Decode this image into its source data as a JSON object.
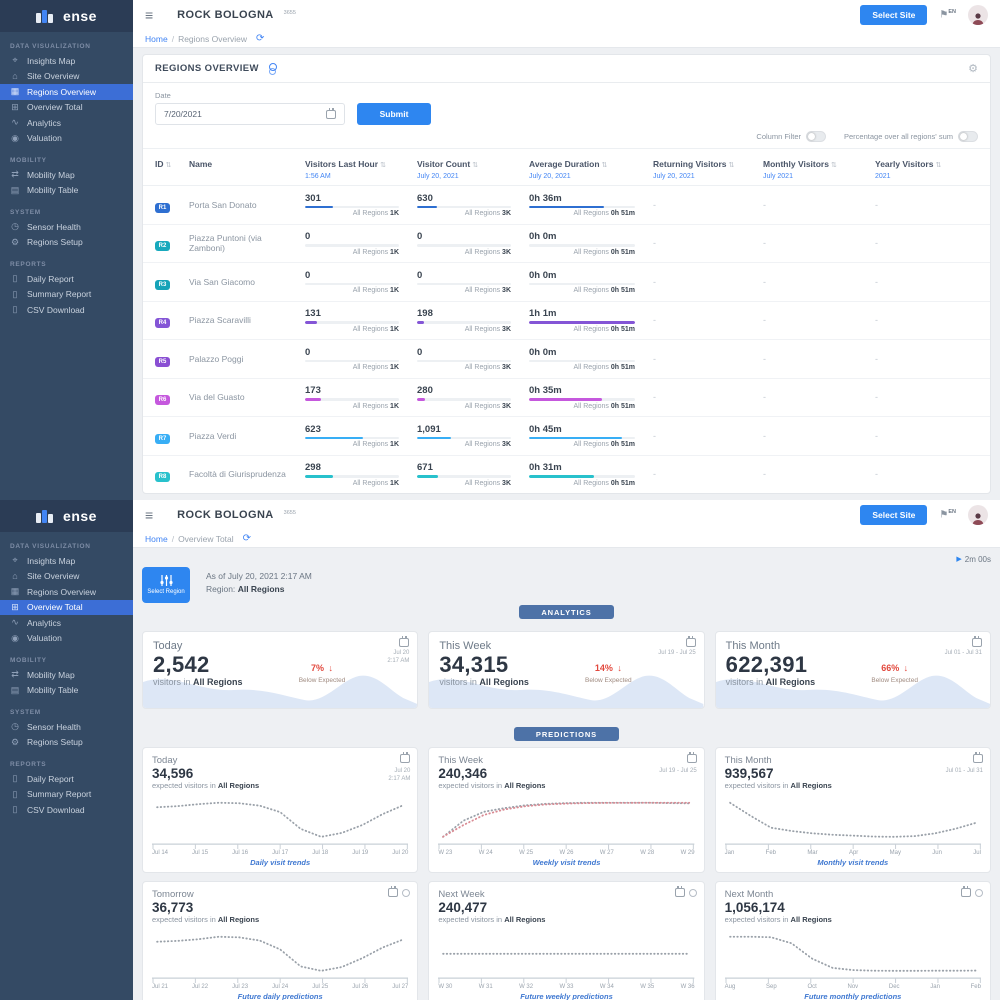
{
  "app": {
    "brand": {
      "logo_text": "ense"
    },
    "header": {
      "menu_icon": "≡",
      "title": "ROCK BOLOGNA",
      "title_badge": "3655",
      "select_site_label": "Select Site",
      "language": "EN",
      "language_icon": "⚑"
    },
    "icons": {
      "refresh": "⟳",
      "gear": "⚙",
      "sort": "⇅",
      "play": "▶",
      "down_arrow": "↓"
    },
    "sidebar": {
      "sections": [
        {
          "title": "DATA VISUALIZATION",
          "items": [
            {
              "label": "Insights Map",
              "icon": "⌖"
            },
            {
              "label": "Site Overview",
              "icon": "⌂"
            },
            {
              "label": "Regions Overview",
              "icon": "▦"
            },
            {
              "label": "Overview Total",
              "icon": "⊞"
            },
            {
              "label": "Analytics",
              "icon": "∿"
            },
            {
              "label": "Valuation",
              "icon": "◉"
            }
          ]
        },
        {
          "title": "MOBILITY",
          "items": [
            {
              "label": "Mobility Map",
              "icon": "⇄"
            },
            {
              "label": "Mobility Table",
              "icon": "▤"
            }
          ]
        },
        {
          "title": "SYSTEM",
          "items": [
            {
              "label": "Sensor Health",
              "icon": "◷"
            },
            {
              "label": "Regions Setup",
              "icon": "⚙"
            }
          ]
        },
        {
          "title": "REPORTS",
          "items": [
            {
              "label": "Daily Report",
              "icon": "▯"
            },
            {
              "label": "Summary Report",
              "icon": "▯"
            },
            {
              "label": "CSV Download",
              "icon": "▯"
            }
          ]
        }
      ]
    }
  },
  "screen_top": {
    "active_nav": "Regions Overview",
    "breadcrumb": {
      "home": "Home",
      "sep": "/",
      "current": "Regions Overview"
    },
    "panel": {
      "title": "REGIONS OVERVIEW",
      "date_label": "Date",
      "date_value": "7/20/2021",
      "submit_label": "Submit",
      "column_filter_label": "Column Filter",
      "percentage_label": "Percentage over all regions' sum"
    },
    "table": {
      "columns": [
        {
          "label": "ID",
          "sub": "",
          "sortable": true
        },
        {
          "label": "Name",
          "sub": "",
          "sortable": false
        },
        {
          "label": "Visitors Last Hour",
          "sub": "1:56 AM",
          "sortable": true
        },
        {
          "label": "Visitor Count",
          "sub": "July 20, 2021",
          "sortable": true
        },
        {
          "label": "Average Duration",
          "sub": "July 20, 2021",
          "sortable": true
        },
        {
          "label": "Returning Visitors",
          "sub": "July 20, 2021",
          "sortable": true
        },
        {
          "label": "Monthly Visitors",
          "sub": "July 2021",
          "sortable": true
        },
        {
          "label": "Yearly Visitors",
          "sub": "2021",
          "sortable": true
        }
      ],
      "totals": {
        "prefix": "All Regions",
        "last_hour": "1K",
        "count": "3K",
        "duration": "0h 51m"
      },
      "rows": [
        {
          "id": "R1",
          "color": "#2e6fd1",
          "name": "Porta San Donato",
          "last_hour": "301",
          "last_hour_pct": 30,
          "count": "630",
          "count_pct": 21,
          "duration": "0h 36m",
          "duration_pct": 71,
          "returning": "-",
          "monthly": "-",
          "yearly": "-"
        },
        {
          "id": "R2",
          "color": "#18a9bd",
          "name": "Piazza Puntoni (via Zamboni)",
          "last_hour": "0",
          "last_hour_pct": 0,
          "count": "0",
          "count_pct": 0,
          "duration": "0h 0m",
          "duration_pct": 0,
          "returning": "-",
          "monthly": "-",
          "yearly": "-"
        },
        {
          "id": "R3",
          "color": "#16a3b8",
          "name": "Via San Giacomo",
          "last_hour": "0",
          "last_hour_pct": 0,
          "count": "0",
          "count_pct": 0,
          "duration": "0h 0m",
          "duration_pct": 0,
          "returning": "-",
          "monthly": "-",
          "yearly": "-"
        },
        {
          "id": "R4",
          "color": "#8455d6",
          "name": "Piazza Scaravilli",
          "last_hour": "131",
          "last_hour_pct": 13,
          "count": "198",
          "count_pct": 7,
          "duration": "1h 1m",
          "duration_pct": 100,
          "returning": "-",
          "monthly": "-",
          "yearly": "-"
        },
        {
          "id": "R5",
          "color": "#8a4fd3",
          "name": "Palazzo Poggi",
          "last_hour": "0",
          "last_hour_pct": 0,
          "count": "0",
          "count_pct": 0,
          "duration": "0h 0m",
          "duration_pct": 0,
          "returning": "-",
          "monthly": "-",
          "yearly": "-"
        },
        {
          "id": "R6",
          "color": "#c558dd",
          "name": "Via del Guasto",
          "last_hour": "173",
          "last_hour_pct": 17,
          "count": "280",
          "count_pct": 9,
          "duration": "0h 35m",
          "duration_pct": 69,
          "returning": "-",
          "monthly": "-",
          "yearly": "-"
        },
        {
          "id": "R7",
          "color": "#38aef5",
          "name": "Piazza Verdi",
          "last_hour": "623",
          "last_hour_pct": 62,
          "count": "1,091",
          "count_pct": 36,
          "duration": "0h 45m",
          "duration_pct": 88,
          "returning": "-",
          "monthly": "-",
          "yearly": "-"
        },
        {
          "id": "R8",
          "color": "#28c1cc",
          "name": "Facoltà di Giurisprudenza",
          "last_hour": "298",
          "last_hour_pct": 30,
          "count": "671",
          "count_pct": 22,
          "duration": "0h 31m",
          "duration_pct": 61,
          "returning": "-",
          "monthly": "-",
          "yearly": "-"
        }
      ]
    }
  },
  "screen_bottom": {
    "active_nav": "Overview Total",
    "breadcrumb": {
      "home": "Home",
      "sep": "/",
      "current": "Overview Total"
    },
    "timer": "2m 00s",
    "select_region_label": "Select Region",
    "as_of": "As of July 20, 2021 2:17 AM",
    "region_prefix": "Region:",
    "region_value": "All Regions",
    "analytics_badge": "ANALYTICS",
    "predictions_badge": "PREDICTIONS",
    "analytics_cards": [
      {
        "title": "Today",
        "value": "2,542",
        "subtitle_prefix": "visitors in",
        "subtitle_bold": "All Regions",
        "delta": "7%",
        "delta_note": "Below Expected",
        "date_line1": "Jul 20",
        "date_line2": "2:17 AM"
      },
      {
        "title": "This Week",
        "value": "34,315",
        "subtitle_prefix": "visitors in",
        "subtitle_bold": "All Regions",
        "delta": "14%",
        "delta_note": "Below Expected",
        "date_line1": "Jul 19 - Jul 25",
        "date_line2": ""
      },
      {
        "title": "This Month",
        "value": "622,391",
        "subtitle_prefix": "visitors in",
        "subtitle_bold": "All Regions",
        "delta": "66%",
        "delta_note": "Below Expected",
        "date_line1": "Jul 01 - Jul 31",
        "date_line2": ""
      }
    ],
    "prediction_cards": [
      {
        "title": "Today",
        "value": "34,596",
        "subtitle_prefix": "expected visitors in",
        "subtitle_bold": "All Regions",
        "caption": "Daily visit trends",
        "date_line1": "Jul 20",
        "date_line2": "2:17 AM",
        "has_info_icon": false,
        "x_labels": [
          "Jul 14",
          "Jul 15",
          "Jul 16",
          "Jul 17",
          "Jul 18",
          "Jul 19",
          "Jul 20"
        ],
        "series": [
          {
            "name": "expected",
            "color": "#9aa1a9",
            "values": [
              34200,
              34400,
              34800,
              35100,
              35000,
              34500,
              33200,
              29800,
              28200,
              29000,
              30600,
              32800,
              34596
            ]
          }
        ]
      },
      {
        "title": "This Week",
        "value": "240,346",
        "subtitle_prefix": "expected visitors in",
        "subtitle_bold": "All Regions",
        "caption": "Weekly visit trends",
        "date_line1": "Jul 19 - Jul 25",
        "date_line2": "",
        "has_info_icon": false,
        "x_labels": [
          "W 23",
          "W 24",
          "W 25",
          "W 26",
          "W 27",
          "W 28",
          "W 29"
        ],
        "series": [
          {
            "name": "expected",
            "color": "#9aa1a9",
            "values": [
              231000,
              235500,
              238000,
              239000,
              239800,
              240200,
              240400,
              240500,
              240500,
              240500,
              240500,
              240400,
              240346
            ]
          },
          {
            "name": "previous",
            "color": "#d98a93",
            "values": [
              203000,
              216000,
              227000,
              233000,
              236500,
              238500,
              239500,
              240000,
              240200,
              240300,
              240400,
              240400,
              240346
            ]
          }
        ]
      },
      {
        "title": "This Month",
        "value": "939,567",
        "subtitle_prefix": "expected visitors in",
        "subtitle_bold": "All Regions",
        "caption": "Monthly visit trends",
        "date_line1": "Jul 01 - Jul 31",
        "date_line2": "",
        "has_info_icon": false,
        "x_labels": [
          "Jan",
          "Feb",
          "Mar",
          "Apr",
          "May",
          "Jun",
          "Jul"
        ],
        "series": [
          {
            "name": "expected",
            "color": "#9aa1a9",
            "values": [
              1280000,
              1140000,
              1010000,
              975000,
              950000,
              935000,
              925000,
              915000,
              912000,
              920000,
              950000,
              1000000,
              1065000
            ]
          }
        ]
      },
      {
        "title": "Tomorrow",
        "value": "36,773",
        "subtitle_prefix": "expected visitors in",
        "subtitle_bold": "All Regions",
        "caption": "Future daily predictions",
        "date_line1": "",
        "date_line2": "",
        "has_info_icon": true,
        "x_labels": [
          "Jul 21",
          "Jul 22",
          "Jul 23",
          "Jul 24",
          "Jul 25",
          "Jul 26",
          "Jul 27"
        ],
        "series": [
          {
            "name": "expected",
            "color": "#9aa1a9",
            "values": [
              36400,
              36550,
              36800,
              37200,
              37100,
              36600,
              35200,
              32500,
              31800,
              32400,
              33800,
              35500,
              36773
            ]
          }
        ]
      },
      {
        "title": "Next Week",
        "value": "240,477",
        "subtitle_prefix": "expected visitors in",
        "subtitle_bold": "All Regions",
        "caption": "Future weekly predictions",
        "date_line1": "",
        "date_line2": "",
        "has_info_icon": true,
        "x_labels": [
          "W 30",
          "W 31",
          "W 32",
          "W 33",
          "W 34",
          "W 35",
          "W 36"
        ],
        "series": [
          {
            "name": "expected",
            "color": "#9aa1a9",
            "values": [
              240477,
              240477,
              240477,
              240477,
              240477,
              240477,
              240477
            ]
          }
        ]
      },
      {
        "title": "Next Month",
        "value": "1,056,174",
        "subtitle_prefix": "expected visitors in",
        "subtitle_bold": "All Regions",
        "caption": "Future monthly predictions",
        "date_line1": "",
        "date_line2": "",
        "has_info_icon": true,
        "x_labels": [
          "Aug",
          "Sep",
          "Oct",
          "Nov",
          "Dec",
          "Jan",
          "Feb"
        ],
        "series": [
          {
            "name": "expected",
            "color": "#9aa1a9",
            "values": [
              1900000,
              1900000,
              1880000,
              1600000,
              900000,
              480000,
              380000,
              350000,
              345000,
              345000,
              350000,
              352000,
              355000
            ]
          }
        ]
      }
    ]
  }
}
